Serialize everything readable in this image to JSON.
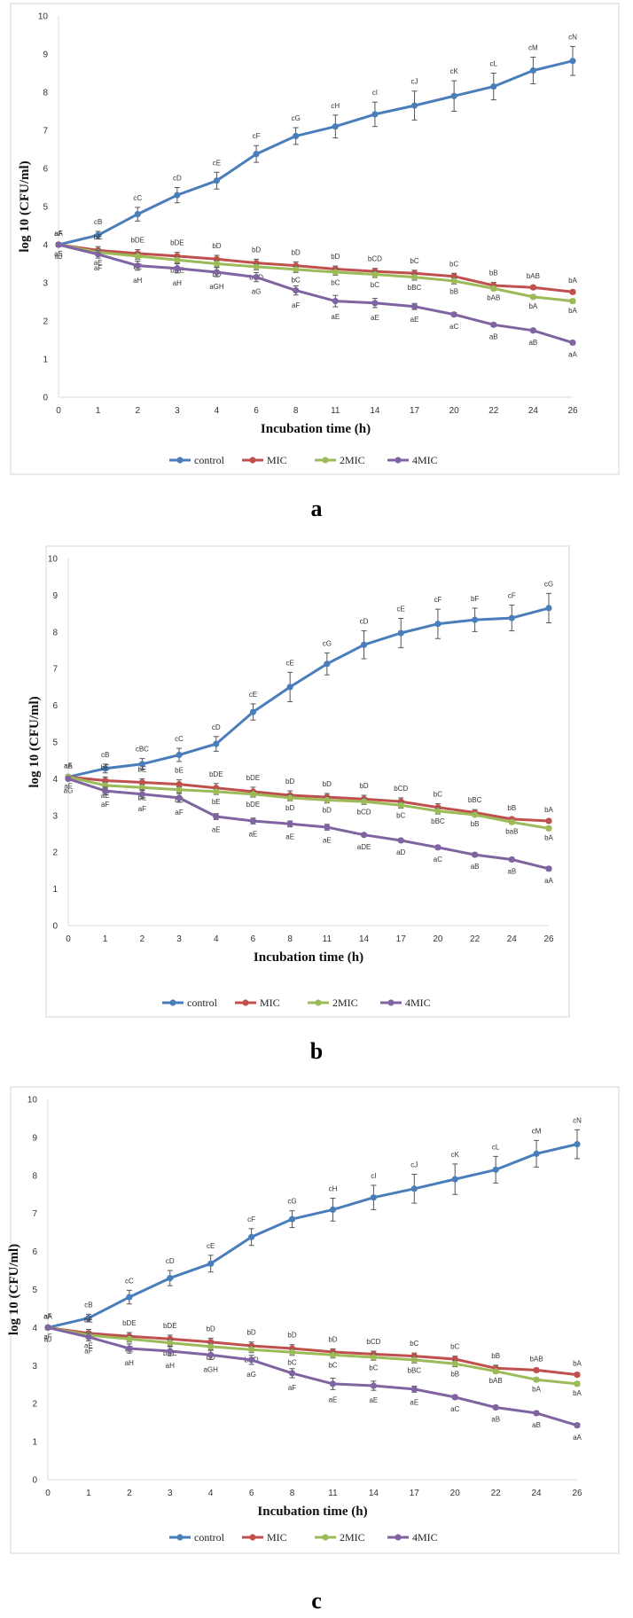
{
  "chart_data": [
    {
      "type": "line",
      "panel_label": "a",
      "xlabel": "Incubation time (h)",
      "ylabel": "log 10 (CFU/ml)",
      "ylim": [
        0,
        10
      ],
      "y_ticks": [
        "0",
        "1",
        "2",
        "3",
        "4",
        "5",
        "6",
        "7",
        "8",
        "9",
        "10"
      ],
      "categories": [
        "0",
        "1",
        "2",
        "3",
        "4",
        "6",
        "8",
        "11",
        "14",
        "17",
        "20",
        "22",
        "24",
        "26"
      ],
      "legend": [
        "control",
        "MIC",
        "2MIC",
        "4MIC"
      ],
      "series": [
        {
          "name": "control",
          "color": "#4a7ebb",
          "values": [
            4.0,
            4.25,
            4.8,
            5.3,
            5.68,
            6.38,
            6.85,
            7.1,
            7.42,
            7.65,
            7.9,
            8.15,
            8.57,
            8.82
          ],
          "errors": [
            0.05,
            0.1,
            0.18,
            0.2,
            0.22,
            0.22,
            0.22,
            0.3,
            0.32,
            0.38,
            0.4,
            0.35,
            0.35,
            0.38
          ],
          "labels": [
            "aA",
            "cB",
            "cC",
            "cD",
            "cE",
            "cF",
            "cG",
            "cH",
            "cI",
            "cJ",
            "cK",
            "cL",
            "cM",
            "cN"
          ]
        },
        {
          "name": "MIC",
          "color": "#c0504d",
          "values": [
            4.0,
            3.85,
            3.77,
            3.7,
            3.62,
            3.52,
            3.45,
            3.36,
            3.3,
            3.25,
            3.17,
            2.93,
            2.88,
            2.76
          ],
          "errors": [
            0.05,
            0.1,
            0.1,
            0.1,
            0.1,
            0.1,
            0.1,
            0.08,
            0.08,
            0.08,
            0.08,
            0.08,
            0.05,
            0.05
          ],
          "labels": [
            "aF",
            "bE",
            "bDE",
            "bDE",
            "bD",
            "bD",
            "bD",
            "bD",
            "bCD",
            "bC",
            "bC",
            "bB",
            "bAB",
            "bA"
          ]
        },
        {
          "name": "2MIC",
          "color": "#9bbb59",
          "values": [
            4.0,
            3.8,
            3.7,
            3.6,
            3.5,
            3.42,
            3.35,
            3.28,
            3.22,
            3.15,
            3.05,
            2.85,
            2.63,
            2.52
          ],
          "errors": [
            0.05,
            0.08,
            0.08,
            0.08,
            0.08,
            0.08,
            0.08,
            0.08,
            0.08,
            0.08,
            0.08,
            0.05,
            0.05,
            0.05
          ],
          "labels": [
            "aE",
            "aE",
            "bE",
            "bDE",
            "bD",
            "bCD",
            "bC",
            "bC",
            "bC",
            "bBC",
            "bB",
            "bAB",
            "bA",
            "bA"
          ]
        },
        {
          "name": "4MIC",
          "color": "#8064a2",
          "values": [
            4.0,
            3.75,
            3.45,
            3.38,
            3.28,
            3.15,
            2.8,
            2.52,
            2.47,
            2.38,
            2.17,
            1.9,
            1.75,
            1.43
          ],
          "errors": [
            0.05,
            0.1,
            0.12,
            0.12,
            0.12,
            0.12,
            0.12,
            0.15,
            0.12,
            0.08,
            0.05,
            0.05,
            0.05,
            0.05
          ],
          "labels": [
            "aJ",
            "aF",
            "aH",
            "aH",
            "aGH",
            "aG",
            "aF",
            "aE",
            "aE",
            "aE",
            "aC",
            "aB",
            "aB",
            "aA"
          ]
        }
      ]
    },
    {
      "type": "line",
      "panel_label": "b",
      "xlabel": "Incubation time (h)",
      "ylabel": "log 10 (CFU/ml)",
      "ylim": [
        0,
        10
      ],
      "y_ticks": [
        "0",
        "1",
        "2",
        "3",
        "4",
        "5",
        "6",
        "7",
        "8",
        "9",
        "10"
      ],
      "categories": [
        "0",
        "1",
        "2",
        "3",
        "4",
        "6",
        "8",
        "11",
        "14",
        "17",
        "20",
        "22",
        "24",
        "26"
      ],
      "legend": [
        "control",
        "MIC",
        "2MIC",
        "4MIC"
      ],
      "series": [
        {
          "name": "control",
          "color": "#4a7ebb",
          "values": [
            4.05,
            4.28,
            4.4,
            4.65,
            4.95,
            5.82,
            6.5,
            7.13,
            7.65,
            7.97,
            8.22,
            8.33,
            8.38,
            8.65
          ],
          "errors": [
            0.05,
            0.12,
            0.15,
            0.18,
            0.2,
            0.22,
            0.4,
            0.3,
            0.38,
            0.4,
            0.4,
            0.32,
            0.35,
            0.4
          ],
          "labels": [
            "aA",
            "cB",
            "cBC",
            "cC",
            "cD",
            "cE",
            "cE",
            "cG",
            "cD",
            "cE",
            "cF",
            "bF",
            "cF",
            "cG"
          ]
        },
        {
          "name": "MIC",
          "color": "#c0504d",
          "values": [
            4.05,
            3.95,
            3.9,
            3.85,
            3.75,
            3.65,
            3.55,
            3.5,
            3.45,
            3.38,
            3.22,
            3.08,
            2.9,
            2.85
          ],
          "errors": [
            0.05,
            0.1,
            0.1,
            0.12,
            0.12,
            0.12,
            0.12,
            0.1,
            0.1,
            0.1,
            0.1,
            0.08,
            0.05,
            0.05
          ],
          "labels": [
            "aE",
            "bE",
            "bE",
            "bE",
            "bDE",
            "bDE",
            "bD",
            "bD",
            "bD",
            "bCD",
            "bC",
            "bBC",
            "bB",
            "bA"
          ]
        },
        {
          "name": "2MIC",
          "color": "#9bbb59",
          "values": [
            4.05,
            3.82,
            3.76,
            3.7,
            3.65,
            3.58,
            3.48,
            3.42,
            3.38,
            3.28,
            3.12,
            3.02,
            2.82,
            2.65
          ],
          "errors": [
            0.05,
            0.08,
            0.08,
            0.08,
            0.08,
            0.08,
            0.08,
            0.08,
            0.08,
            0.08,
            0.08,
            0.05,
            0.05,
            0.05
          ],
          "labels": [
            "aF",
            "aE",
            "bE",
            "bE",
            "bE",
            "bDE",
            "bD",
            "bD",
            "bCD",
            "bC",
            "bBC",
            "bB",
            "baB",
            "bA"
          ]
        },
        {
          "name": "4MIC",
          "color": "#8064a2",
          "values": [
            4.0,
            3.67,
            3.58,
            3.48,
            2.97,
            2.85,
            2.77,
            2.68,
            2.47,
            2.32,
            2.13,
            1.93,
            1.8,
            1.55
          ],
          "errors": [
            0.05,
            0.1,
            0.12,
            0.12,
            0.08,
            0.08,
            0.08,
            0.08,
            0.05,
            0.05,
            0.05,
            0.05,
            0.05,
            0.05
          ],
          "labels": [
            "aG",
            "aF",
            "aF",
            "aF",
            "aE",
            "aE",
            "aE",
            "aE",
            "aDE",
            "aD",
            "aC",
            "aB",
            "aB",
            "aA"
          ]
        }
      ]
    },
    {
      "type": "line",
      "panel_label": "c",
      "xlabel": "Incubation time (h)",
      "ylabel": "log 10 (CFU/ml)",
      "ylim": [
        0,
        10
      ],
      "y_ticks": [
        "0",
        "1",
        "2",
        "3",
        "4",
        "5",
        "6",
        "7",
        "8",
        "9",
        "10"
      ],
      "categories": [
        "0",
        "1",
        "2",
        "3",
        "4",
        "6",
        "8",
        "11",
        "14",
        "17",
        "20",
        "22",
        "24",
        "26"
      ],
      "legend": [
        "control",
        "MIC",
        "2MIC",
        "4MIC"
      ],
      "series": [
        {
          "name": "control",
          "color": "#4a7ebb",
          "values": [
            4.0,
            4.25,
            4.8,
            5.3,
            5.68,
            6.38,
            6.85,
            7.1,
            7.42,
            7.65,
            7.9,
            8.15,
            8.57,
            8.82
          ],
          "errors": [
            0.05,
            0.1,
            0.18,
            0.2,
            0.22,
            0.22,
            0.22,
            0.3,
            0.32,
            0.38,
            0.4,
            0.35,
            0.35,
            0.38
          ],
          "labels": [
            "aA",
            "cB",
            "cC",
            "cD",
            "cE",
            "cF",
            "cG",
            "cH",
            "cI",
            "cJ",
            "cK",
            "cL",
            "cM",
            "cN"
          ]
        },
        {
          "name": "MIC",
          "color": "#c0504d",
          "values": [
            4.0,
            3.85,
            3.77,
            3.7,
            3.62,
            3.52,
            3.45,
            3.36,
            3.3,
            3.25,
            3.17,
            2.93,
            2.88,
            2.76
          ],
          "errors": [
            0.05,
            0.1,
            0.1,
            0.1,
            0.1,
            0.1,
            0.1,
            0.08,
            0.08,
            0.08,
            0.08,
            0.08,
            0.05,
            0.05
          ],
          "labels": [
            "aF",
            "bE",
            "bDE",
            "bDE",
            "bD",
            "bD",
            "bD",
            "bD",
            "bCD",
            "bC",
            "bC",
            "bB",
            "bAB",
            "bA"
          ]
        },
        {
          "name": "2MIC",
          "color": "#9bbb59",
          "values": [
            4.0,
            3.8,
            3.7,
            3.6,
            3.5,
            3.42,
            3.35,
            3.28,
            3.22,
            3.15,
            3.05,
            2.85,
            2.63,
            2.52
          ],
          "errors": [
            0.05,
            0.08,
            0.08,
            0.08,
            0.08,
            0.08,
            0.08,
            0.08,
            0.08,
            0.08,
            0.08,
            0.05,
            0.05,
            0.05
          ],
          "labels": [
            "aF",
            "aE",
            "bE",
            "bDE",
            "bD",
            "bCD",
            "bC",
            "bC",
            "bC",
            "bBC",
            "bB",
            "bAB",
            "bA",
            "bA"
          ]
        },
        {
          "name": "4MIC",
          "color": "#8064a2",
          "values": [
            4.0,
            3.75,
            3.45,
            3.38,
            3.28,
            3.15,
            2.8,
            2.52,
            2.47,
            2.38,
            2.17,
            1.9,
            1.75,
            1.43
          ],
          "errors": [
            0.05,
            0.1,
            0.12,
            0.12,
            0.12,
            0.12,
            0.12,
            0.15,
            0.12,
            0.08,
            0.05,
            0.05,
            0.05,
            0.05
          ],
          "labels": [
            "aJ",
            "aF",
            "aH",
            "aH",
            "aGH",
            "aG",
            "aF",
            "aE",
            "aE",
            "aE",
            "aC",
            "aB",
            "aB",
            "aA"
          ]
        }
      ]
    }
  ]
}
